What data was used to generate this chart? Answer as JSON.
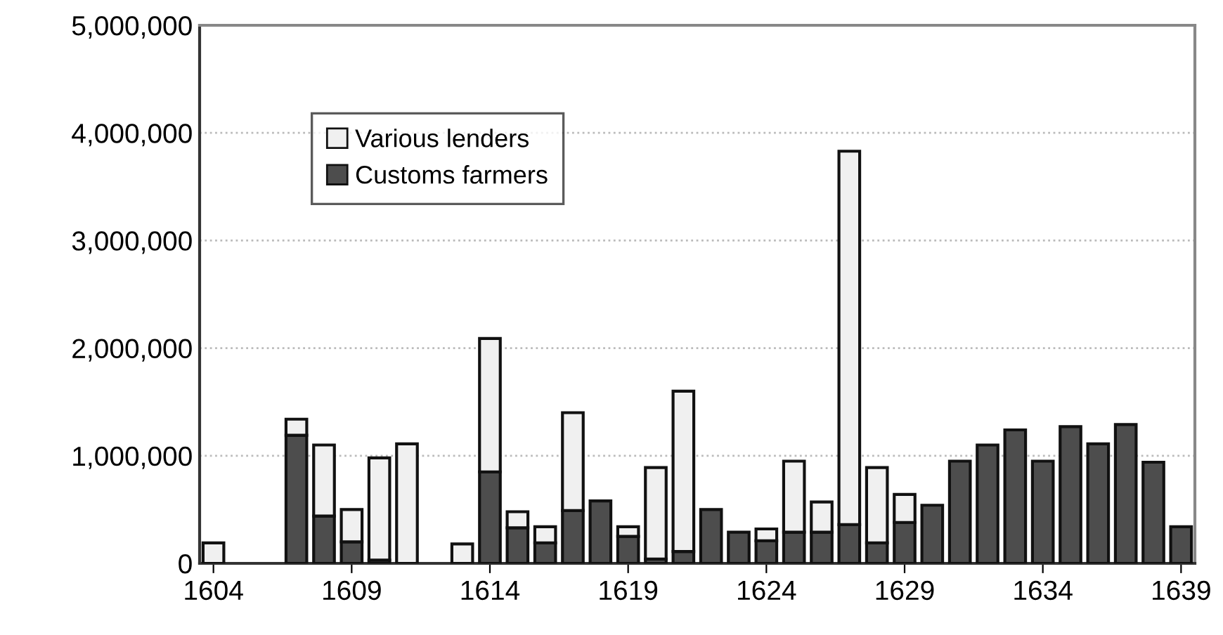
{
  "chart_data": {
    "type": "bar",
    "stacked": true,
    "categories": [
      "1604",
      null,
      null,
      null,
      null,
      "1609",
      null,
      null,
      null,
      null,
      "1614",
      null,
      null,
      null,
      null,
      "1619",
      null,
      null,
      null,
      null,
      "1624",
      null,
      null,
      null,
      null,
      "1629",
      null,
      null,
      null,
      null,
      "1634",
      null,
      null,
      null,
      null,
      "1639"
    ],
    "series": [
      {
        "name": "Customs farmers",
        "color": "#4d4d4d",
        "values": [
          null,
          null,
          null,
          1190000,
          440000,
          200000,
          30000,
          null,
          null,
          null,
          850000,
          330000,
          190000,
          490000,
          580000,
          250000,
          40000,
          110000,
          500000,
          290000,
          210000,
          290000,
          290000,
          360000,
          190000,
          380000,
          540000,
          950000,
          1100000,
          1240000,
          950000,
          1270000,
          1110000,
          1290000,
          940000,
          340000
        ]
      },
      {
        "name": "Various lenders",
        "color": "#f0f0f0",
        "values": [
          190000,
          null,
          null,
          150000,
          660000,
          300000,
          950000,
          1110000,
          null,
          180000,
          1240000,
          150000,
          150000,
          910000,
          null,
          90000,
          850000,
          1490000,
          null,
          null,
          110000,
          660000,
          280000,
          3470000,
          700000,
          260000,
          null,
          null,
          null,
          null,
          null,
          null,
          null,
          null,
          null,
          null
        ]
      }
    ],
    "ylim": [
      0,
      5000000
    ],
    "yticks": [
      {
        "value": 0,
        "label": "0"
      },
      {
        "value": 1000000,
        "label": "1,000,000"
      },
      {
        "value": 2000000,
        "label": "2,000,000"
      },
      {
        "value": 3000000,
        "label": "3,000,000"
      },
      {
        "value": 4000000,
        "label": "4,000,000"
      },
      {
        "value": 5000000,
        "label": "5,000,000"
      }
    ],
    "grid": "y",
    "legend": "top left"
  }
}
